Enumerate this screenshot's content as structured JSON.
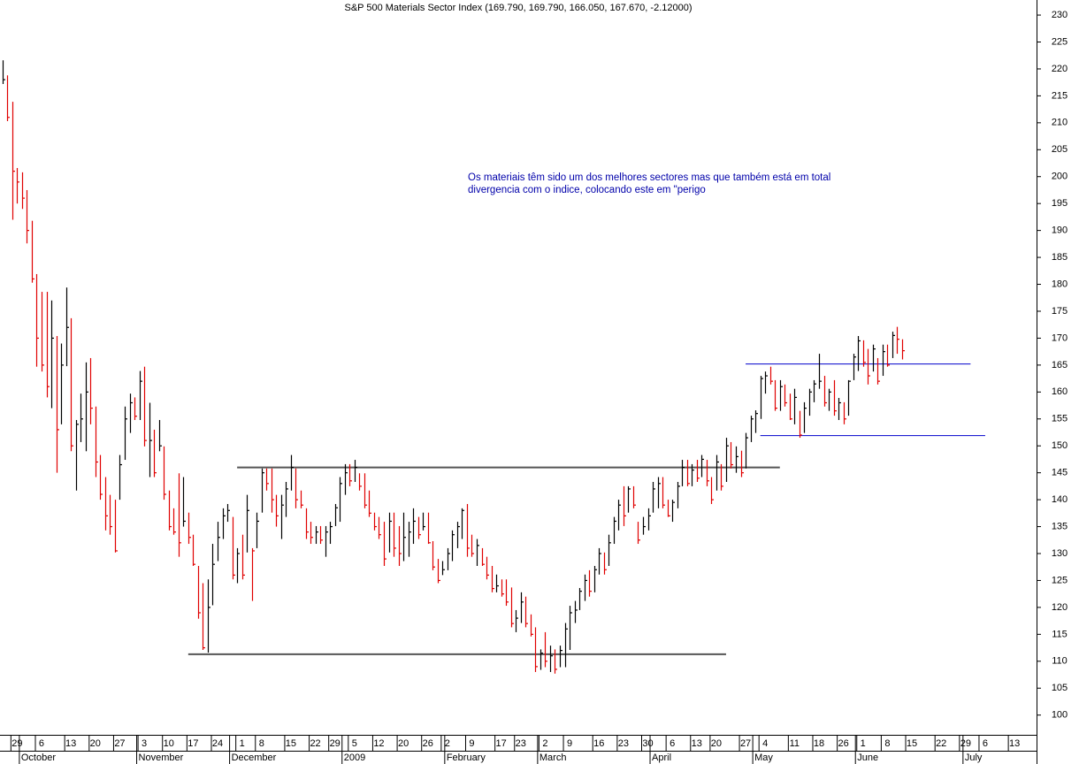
{
  "chart_data": {
    "type": "ohlc",
    "title": "S&P 500 Materials Sector Index (169.790, 169.790, 166.050, 167.670, -2.12000)",
    "annotation_lines": [
      "Os materiais têm sido um dos melhores sectores mas que também está em total",
      "divergencia com o indice, colocando este em \"perigo"
    ],
    "annotation_color": "#0000aa",
    "up_color": "#000000",
    "down_color": "#e00000",
    "categories": [
      null,
      null,
      null,
      "29",
      null,
      null,
      null,
      null,
      "6",
      null,
      null,
      null,
      null,
      null,
      "13",
      null,
      null,
      null,
      null,
      "20",
      null,
      null,
      null,
      null,
      "27",
      null,
      null,
      null,
      null,
      "3",
      null,
      null,
      null,
      null,
      "10",
      null,
      null,
      null,
      null,
      "17",
      null,
      null,
      null,
      null,
      "24",
      null,
      null,
      null,
      null,
      "1",
      null,
      null,
      null,
      "8",
      null,
      null,
      null,
      null,
      null,
      "15",
      null,
      null,
      null,
      null,
      "22",
      null,
      null,
      null,
      "29",
      null,
      null,
      null,
      "5",
      null,
      null,
      null,
      null,
      "12",
      null,
      null,
      null,
      null,
      "20",
      null,
      null,
      null,
      null,
      "26",
      null,
      null,
      null,
      "2",
      null,
      null,
      null,
      null,
      "9",
      null,
      null,
      null,
      null,
      null,
      "17",
      null,
      null,
      null,
      "23",
      null,
      null,
      null,
      null,
      "2",
      null,
      null,
      null,
      null,
      "9",
      null,
      null,
      null,
      null,
      null,
      "16",
      null,
      null,
      null,
      null,
      "23",
      null,
      null,
      null,
      null,
      "30",
      null,
      null,
      null,
      null,
      "6",
      null,
      null,
      null,
      null,
      "13",
      null,
      null,
      null,
      "20",
      null,
      null,
      null,
      null,
      null,
      "27",
      null,
      null,
      null,
      "4",
      null,
      null,
      null,
      null,
      null,
      "11",
      null,
      null,
      null,
      null,
      "18",
      null,
      null,
      null,
      null,
      "26",
      null,
      null,
      null,
      "1",
      null,
      null,
      null,
      null,
      "8",
      null,
      null,
      null,
      null,
      "15",
      null,
      null,
      null,
      null,
      null,
      "22",
      null,
      null,
      null,
      null,
      "29",
      null,
      null,
      null,
      "6",
      null,
      null,
      null,
      null,
      null,
      "13",
      null,
      null,
      null,
      null
    ],
    "months": [
      null,
      null,
      null,
      null,
      "October",
      null,
      null,
      null,
      null,
      null,
      null,
      null,
      null,
      null,
      null,
      null,
      null,
      null,
      null,
      null,
      null,
      null,
      null,
      null,
      null,
      null,
      null,
      null,
      "November",
      null,
      null,
      null,
      null,
      null,
      null,
      null,
      null,
      null,
      null,
      null,
      null,
      null,
      null,
      null,
      null,
      null,
      null,
      "December",
      null,
      null,
      null,
      null,
      null,
      null,
      null,
      null,
      null,
      null,
      null,
      null,
      null,
      null,
      null,
      null,
      null,
      null,
      null,
      null,
      null,
      null,
      "2009",
      null,
      null,
      null,
      null,
      null,
      null,
      null,
      null,
      null,
      null,
      null,
      null,
      null,
      null,
      null,
      null,
      null,
      null,
      null,
      null,
      "February",
      null,
      null,
      null,
      null,
      null,
      null,
      null,
      null,
      null,
      null,
      null,
      null,
      null,
      null,
      null,
      null,
      null,
      null,
      "March",
      null,
      null,
      null,
      null,
      null,
      null,
      null,
      null,
      null,
      null,
      null,
      null,
      null,
      null,
      null,
      null,
      null,
      null,
      null,
      null,
      null,
      null,
      "April",
      null,
      null,
      null,
      null,
      null,
      null,
      null,
      null,
      null,
      null,
      null,
      null,
      null,
      null,
      null,
      null,
      null,
      null,
      null,
      null,
      "May",
      null,
      null,
      null,
      null,
      null,
      null,
      null,
      null,
      null,
      null,
      null,
      null,
      null,
      null,
      null,
      null,
      null,
      null,
      null,
      null,
      "June",
      null,
      null,
      null,
      null,
      null,
      null,
      null,
      null,
      null,
      null,
      null,
      null,
      null,
      null,
      null,
      null,
      null,
      null,
      null,
      null,
      null,
      "July",
      null,
      null,
      null,
      null,
      null,
      null,
      null,
      null,
      null,
      null,
      null,
      null,
      null,
      null
    ],
    "high": [
      221.6,
      218.8,
      213.9,
      201.6,
      200.8,
      197.5,
      191.8,
      181.9,
      178.6,
      178.6,
      177.0,
      170.4,
      169.0,
      179.4,
      173.7,
      154.8,
      159.7,
      165.5,
      166.3,
      157.3,
      148.3,
      144.2,
      140.9,
      140.0,
      148.3,
      157.3,
      159.7,
      159.0,
      163.9,
      164.7,
      158.0,
      153.0,
      154.8,
      149.9,
      141.7,
      138.4,
      144.9,
      144.2,
      137.6,
      133.5,
      127.7,
      124.5,
      125.2,
      131.8,
      135.9,
      138.4,
      139.2,
      136.8,
      131.0,
      133.5,
      140.9,
      131.0,
      137.6,
      145.8,
      145.8,
      145.8,
      140.9,
      140.9,
      143.3,
      148.3,
      145.8,
      141.7,
      138.4,
      135.9,
      135.1,
      135.1,
      135.1,
      135.9,
      139.2,
      144.2,
      146.6,
      146.6,
      147.4,
      144.9,
      144.9,
      141.7,
      137.6,
      136.8,
      135.9,
      137.6,
      137.6,
      135.1,
      137.6,
      135.9,
      138.4,
      136.8,
      137.6,
      137.6,
      132.3,
      129.0,
      128.6,
      131.0,
      134.3,
      135.9,
      138.4,
      139.2,
      133.5,
      132.7,
      131.0,
      129.4,
      127.7,
      126.1,
      125.2,
      125.2,
      123.7,
      119.5,
      122.8,
      122.0,
      118.7,
      116.3,
      112.2,
      115.4,
      112.9,
      112.2,
      112.9,
      117.1,
      120.3,
      121.2,
      123.6,
      126.1,
      126.9,
      127.7,
      131.0,
      130.2,
      133.5,
      136.8,
      140.0,
      142.5,
      142.5,
      142.5,
      135.9,
      136.8,
      138.4,
      143.3,
      144.2,
      144.2,
      140.0,
      140.0,
      143.3,
      147.4,
      147.4,
      146.6,
      147.4,
      148.3,
      147.4,
      144.2,
      148.3,
      146.6,
      151.5,
      150.7,
      149.9,
      149.1,
      152.4,
      155.6,
      156.6,
      163.0,
      163.8,
      164.7,
      162.2,
      162.2,
      161.4,
      159.7,
      160.6,
      156.5,
      158.1,
      160.6,
      162.2,
      167.1,
      163.0,
      160.6,
      162.2,
      158.9,
      158.1,
      162.2,
      167.1,
      170.4,
      169.6,
      168.0,
      168.8,
      166.3,
      168.8,
      168.8,
      171.2,
      172.1,
      169.79,
      null,
      null,
      null,
      null,
      null,
      null,
      null,
      null,
      null,
      null,
      null,
      null,
      null,
      null,
      null,
      null,
      null,
      null,
      null,
      null,
      null,
      null,
      null,
      null,
      null,
      null,
      null
    ],
    "low": [
      217.2,
      210.3,
      192.0,
      195.0,
      194.0,
      187.6,
      180.3,
      164.7,
      163.8,
      159.0,
      157.0,
      145.0,
      154.0,
      164.8,
      149.0,
      141.7,
      150.7,
      149.0,
      154.0,
      144.2,
      140.0,
      134.3,
      133.5,
      130.2,
      140.0,
      147.4,
      152.4,
      154.8,
      154.8,
      149.9,
      144.2,
      144.2,
      149.0,
      140.0,
      134.3,
      133.5,
      129.4,
      135.0,
      131.8,
      127.7,
      117.9,
      112.1,
      111.6,
      120.4,
      128.6,
      132.7,
      135.9,
      125.2,
      124.5,
      125.2,
      130.2,
      121.2,
      131.0,
      137.6,
      141.7,
      137.6,
      135.0,
      132.7,
      136.8,
      141.7,
      138.4,
      138.4,
      132.7,
      131.8,
      131.8,
      131.8,
      129.4,
      131.8,
      135.1,
      135.9,
      140.9,
      142.5,
      143.3,
      141.7,
      138.4,
      136.8,
      134.3,
      132.7,
      127.7,
      130.2,
      129.4,
      127.7,
      128.6,
      129.4,
      131.8,
      132.7,
      134.3,
      131.8,
      126.9,
      124.5,
      126.0,
      126.9,
      128.6,
      131.0,
      132.7,
      129.4,
      129.4,
      127.7,
      127.7,
      125.2,
      122.8,
      122.8,
      122.0,
      120.3,
      116.3,
      115.4,
      117.1,
      116.3,
      114.6,
      108.0,
      108.4,
      108.9,
      108.0,
      107.7,
      108.9,
      108.9,
      112.1,
      117.1,
      119.5,
      121.2,
      122.0,
      122.8,
      126.1,
      126.1,
      127.7,
      131.8,
      134.3,
      135.1,
      137.6,
      138.4,
      131.8,
      133.5,
      134.3,
      137.6,
      138.4,
      138.4,
      136.8,
      135.9,
      138.4,
      142.5,
      142.5,
      142.5,
      143.3,
      144.2,
      142.5,
      139.2,
      141.7,
      141.7,
      143.3,
      145.8,
      145.0,
      144.2,
      145.8,
      150.7,
      152.4,
      155.0,
      159.7,
      161.4,
      156.5,
      156.5,
      157.3,
      154.8,
      154.0,
      151.5,
      152.4,
      155.6,
      158.1,
      160.6,
      157.3,
      156.5,
      155.6,
      154.8,
      154.0,
      155.6,
      162.2,
      163.9,
      164.7,
      161.4,
      163.8,
      161.4,
      163.0,
      164.7,
      166.3,
      167.1,
      166.05,
      null,
      null,
      null,
      null,
      null,
      null,
      null,
      null,
      null,
      null,
      null,
      null,
      null,
      null,
      null,
      null,
      null,
      null,
      null,
      null,
      null,
      null,
      null,
      null,
      null,
      null,
      null
    ],
    "close": [
      218.0,
      211.0,
      201.0,
      199.0,
      196.0,
      190.0,
      181.0,
      170.0,
      165.0,
      161.0,
      170.0,
      153.0,
      165.0,
      172.0,
      150.0,
      154.0,
      155.0,
      160.0,
      157.0,
      147.0,
      141.0,
      137.0,
      135.0,
      130.5,
      146.5,
      155.0,
      158.0,
      155.5,
      162.0,
      151.0,
      151.0,
      145.0,
      150.0,
      141.0,
      135.0,
      134.0,
      132.0,
      136.0,
      133.0,
      128.0,
      119.0,
      112.5,
      120.0,
      128.0,
      133.0,
      137.0,
      138.0,
      126.0,
      130.0,
      126.0,
      138.0,
      130.5,
      136.0,
      145.0,
      143.0,
      140.0,
      137.0,
      139.0,
      142.0,
      146.0,
      140.0,
      139.0,
      134.0,
      133.0,
      134.0,
      132.5,
      134.0,
      135.0,
      138.5,
      143.0,
      145.0,
      143.5,
      146.0,
      142.5,
      139.0,
      137.5,
      135.0,
      133.5,
      129.0,
      136.0,
      131.0,
      130.0,
      133.0,
      134.0,
      136.0,
      133.5,
      135.0,
      132.0,
      127.5,
      125.0,
      127.0,
      130.0,
      133.5,
      135.0,
      138.0,
      131.0,
      130.0,
      131.5,
      128.0,
      126.0,
      123.5,
      124.0,
      122.5,
      121.0,
      117.0,
      118.0,
      121.0,
      117.0,
      115.0,
      109.0,
      111.5,
      110.0,
      111.0,
      108.5,
      112.0,
      116.0,
      119.0,
      119.5,
      123.0,
      125.0,
      123.0,
      127.0,
      130.0,
      127.0,
      132.0,
      136.0,
      139.0,
      137.0,
      142.0,
      139.0,
      132.5,
      135.0,
      137.0,
      142.0,
      143.0,
      139.0,
      137.0,
      139.5,
      142.5,
      146.0,
      143.0,
      145.5,
      144.0,
      147.5,
      143.5,
      140.0,
      147.0,
      142.5,
      150.0,
      146.5,
      148.0,
      145.0,
      151.5,
      155.0,
      156.0,
      162.5,
      163.0,
      162.0,
      157.0,
      161.0,
      158.0,
      155.0,
      159.0,
      152.0,
      157.0,
      160.0,
      161.5,
      162.0,
      158.0,
      160.0,
      156.5,
      158.0,
      155.0,
      162.0,
      166.5,
      169.5,
      165.5,
      163.0,
      168.0,
      162.0,
      167.5,
      165.0,
      170.5,
      169.8,
      167.67,
      null,
      null,
      null,
      null,
      null,
      null,
      null,
      null,
      null,
      null,
      null,
      null,
      null,
      null,
      null,
      null,
      null,
      null,
      null,
      null,
      null,
      null,
      null,
      null,
      null,
      null,
      null
    ],
    "reference_lines": [
      {
        "value": 146,
        "x": [
          48,
          159
        ],
        "color": "#555555"
      },
      {
        "value": 111.3,
        "x": [
          38,
          148
        ],
        "color": "#555555"
      },
      {
        "value": 165.2,
        "x": [
          152,
          198
        ],
        "color": "#0000cc"
      },
      {
        "value": 151.9,
        "x": [
          155,
          201
        ],
        "color": "#0000cc"
      }
    ],
    "ylim": [
      96.5,
      232.8
    ],
    "yticks": [
      100,
      105,
      110,
      115,
      120,
      125,
      130,
      135,
      140,
      145,
      150,
      155,
      160,
      165,
      170,
      175,
      180,
      185,
      190,
      195,
      200,
      205,
      210,
      215,
      220,
      225,
      230
    ]
  }
}
